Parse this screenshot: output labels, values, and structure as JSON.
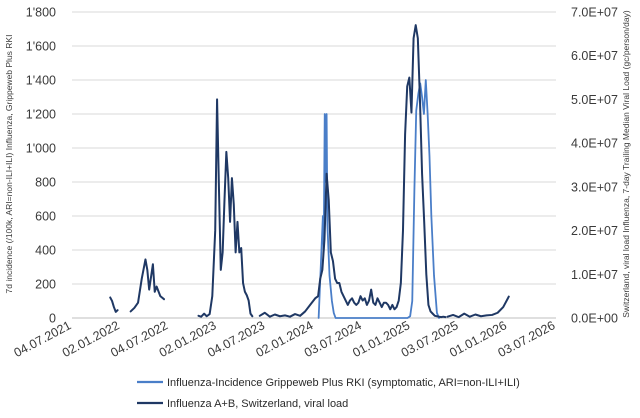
{
  "chart_data": {
    "type": "line",
    "title": "",
    "x_date_range": [
      "2021-07-04",
      "2026-07-03"
    ],
    "x_tick_labels": [
      "04.07.2021",
      "02.01.2022",
      "04.07.2022",
      "02.01.2023",
      "04.07.2023",
      "02.01.2024",
      "03.07.2024",
      "01.01.2025",
      "03.07.2025",
      "01.01.2026",
      "03.07.2026"
    ],
    "y_left": {
      "label": "7d incidence (/100k, ARI=non-ILI+ILI) Influenza, Grippeweb Plus RKI",
      "range": [
        0,
        1800
      ],
      "tick_labels": [
        "0",
        "200",
        "400",
        "600",
        "800",
        "1'000",
        "1'200",
        "1'400",
        "1'600",
        "1'800"
      ]
    },
    "y_right": {
      "label": "Switzerland, viral load Influenza, 7-day Trailing Median Viral Load (gc/person/day)",
      "range": [
        0,
        70000000
      ],
      "tick_labels": [
        "0.0E+00",
        "1.0E+07",
        "2.0E+07",
        "3.0E+07",
        "4.0E+07",
        "5.0E+07",
        "6.0E+07",
        "7.0E+07"
      ]
    },
    "series": [
      {
        "name": "Influenza-Incidence Grippeweb Plus RKI (symptomatic, ARI=non-ILI+ILI)",
        "axis": "left",
        "color": "#4a7ec8",
        "x": [
          "2024-01-20",
          "2024-02-05",
          "2024-02-08",
          "2024-02-12",
          "2024-02-15",
          "2024-02-19",
          "2024-02-22",
          "2024-03-01",
          "2024-03-10",
          "2024-03-17",
          "2024-03-24",
          "2024-12-20",
          "2024-12-30",
          "2025-01-07",
          "2025-01-15",
          "2025-01-22",
          "2025-01-30",
          "2025-02-06",
          "2025-02-13",
          "2025-02-20",
          "2025-02-27",
          "2025-03-06",
          "2025-03-13",
          "2025-03-20",
          "2025-03-30",
          "2025-04-10",
          "2025-04-18"
        ],
        "values": [
          0,
          600,
          400,
          1200,
          800,
          1200,
          550,
          250,
          100,
          30,
          0,
          0,
          10,
          100,
          750,
          1220,
          1320,
          1380,
          1300,
          1200,
          1400,
          1200,
          950,
          600,
          250,
          30,
          0
        ]
      },
      {
        "name": "Influenza A+B, Switzerland, viral load",
        "axis": "right",
        "color": "#1f3864",
        "segments": [
          {
            "x": [
              "2021-11-25",
              "2021-12-02",
              "2021-12-09",
              "2021-12-16",
              "2021-12-23"
            ],
            "values": [
              4700000,
              3900000,
              2500000,
              1400000,
              1800000
            ]
          },
          {
            "x": [
              "2022-02-10",
              "2022-02-24",
              "2022-03-10",
              "2022-03-24",
              "2022-04-07",
              "2022-04-14",
              "2022-04-21",
              "2022-05-05",
              "2022-05-12",
              "2022-05-19",
              "2022-06-02",
              "2022-06-16"
            ],
            "values": [
              1500000,
              2300000,
              3500000,
              9000000,
              13400000,
              11000000,
              6500000,
              12300000,
              6000000,
              7200000,
              5000000,
              4300000
            ]
          },
          {
            "x": [
              "2022-10-24",
              "2022-11-03",
              "2022-11-14",
              "2022-11-24",
              "2022-12-05",
              "2022-12-15",
              "2022-12-26",
              "2023-01-02",
              "2023-01-09",
              "2023-01-16",
              "2023-01-23",
              "2023-01-30",
              "2023-02-06",
              "2023-02-13",
              "2023-02-20",
              "2023-02-27",
              "2023-03-06",
              "2023-03-13",
              "2023-03-20",
              "2023-03-27",
              "2023-04-03",
              "2023-04-10",
              "2023-04-17",
              "2023-04-24",
              "2023-05-01",
              "2023-05-08",
              "2023-05-15"
            ],
            "values": [
              500000,
              300000,
              1000000,
              400000,
              900000,
              5000000,
              20000000,
              50000000,
              30000000,
              11000000,
              15000000,
              27000000,
              38000000,
              32000000,
              22000000,
              32000000,
              26000000,
              15000000,
              22000000,
              15000000,
              16000000,
              8000000,
              6000000,
              5200000,
              4000000,
              1000000,
              400000
            ]
          },
          {
            "x": [
              "2023-06-12",
              "2023-07-01",
              "2023-07-20",
              "2023-08-08",
              "2023-08-27",
              "2023-09-15",
              "2023-10-04",
              "2023-10-23",
              "2023-11-11",
              "2023-11-30",
              "2023-12-19",
              "2024-01-07",
              "2024-01-18",
              "2024-01-26",
              "2024-02-03",
              "2024-02-11",
              "2024-02-19",
              "2024-02-27",
              "2024-03-06",
              "2024-03-14",
              "2024-03-22",
              "2024-03-30",
              "2024-04-07",
              "2024-04-15",
              "2024-04-23",
              "2024-05-01",
              "2024-05-09",
              "2024-05-17",
              "2024-05-25",
              "2024-06-02",
              "2024-06-10",
              "2024-06-18",
              "2024-06-26",
              "2024-07-04",
              "2024-07-12",
              "2024-07-20",
              "2024-07-28",
              "2024-08-05",
              "2024-08-13",
              "2024-08-21",
              "2024-08-29",
              "2024-09-06",
              "2024-09-14",
              "2024-09-22",
              "2024-09-30",
              "2024-10-08",
              "2024-10-16",
              "2024-10-24",
              "2024-11-01",
              "2024-11-09",
              "2024-11-17",
              "2024-11-25",
              "2024-12-03",
              "2024-12-11",
              "2024-12-19",
              "2024-12-27",
              "2025-01-04",
              "2025-01-12",
              "2025-01-20",
              "2025-01-28",
              "2025-02-05",
              "2025-02-13",
              "2025-02-21",
              "2025-03-01",
              "2025-03-09",
              "2025-03-17",
              "2025-03-25",
              "2025-04-02",
              "2025-04-10",
              "2025-04-18",
              "2025-04-26",
              "2025-05-04",
              "2025-05-12"
            ],
            "values": [
              500000,
              1200000,
              300000,
              800000,
              400000,
              600000,
              300000,
              900000,
              500000,
              1500000,
              3000000,
              4500000,
              5000000,
              9000000,
              11000000,
              18000000,
              33000000,
              27000000,
              15000000,
              13000000,
              9000000,
              8000000,
              8000000,
              6000000,
              5000000,
              4000000,
              3000000,
              4000000,
              4500000,
              3500000,
              3000000,
              3500000,
              5000000,
              4000000,
              4500000,
              3000000,
              4000000,
              6500000,
              3500000,
              3000000,
              4500000,
              3500000,
              2500000,
              3500000,
              3500000,
              3000000,
              2000000,
              3000000,
              2000000,
              2500000,
              4000000,
              8000000,
              20000000,
              42000000,
              53000000,
              55000000,
              47000000,
              64000000,
              67000000,
              64000000,
              50000000,
              33000000,
              22000000,
              10000000,
              3000000,
              1500000,
              1000000,
              500000,
              400000,
              300000,
              200000,
              300000,
              200000
            ]
          },
          {
            "x": [
              "2025-05-20",
              "2025-06-10",
              "2025-07-01",
              "2025-07-22",
              "2025-08-12",
              "2025-09-02",
              "2025-09-23",
              "2025-10-14",
              "2025-11-04",
              "2025-11-25",
              "2025-12-16",
              "2026-01-06"
            ],
            "values": [
              300000,
              700000,
              200000,
              1000000,
              300000,
              800000,
              400000,
              600000,
              700000,
              1200000,
              2500000,
              4900000
            ]
          }
        ]
      }
    ],
    "legend_position": "bottom"
  }
}
